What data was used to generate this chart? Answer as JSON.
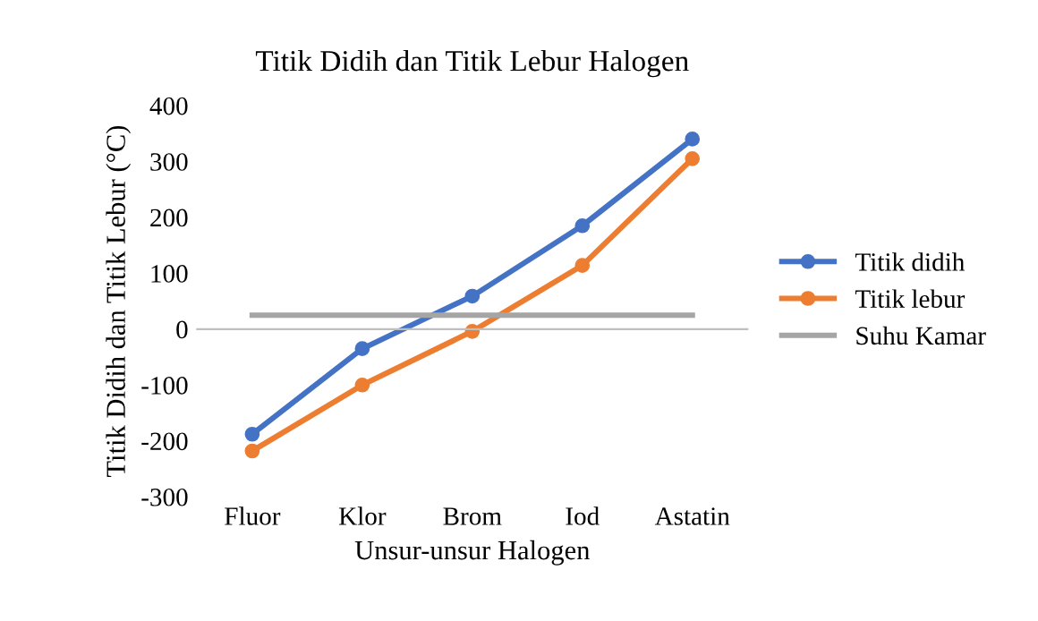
{
  "chart_data": {
    "type": "line",
    "title": "Titik Didih dan Titik Lebur Halogen",
    "xlabel": "Unsur-unsur Halogen",
    "ylabel": "Titik Didih dan Titik Lebur (°C)",
    "categories": [
      "Fluor",
      "Klor",
      "Brom",
      "Iod",
      "Astatin"
    ],
    "series": [
      {
        "name": "Titik didih",
        "color": "#4472c4",
        "marker": "circle",
        "values": [
          -188,
          -35,
          59,
          185,
          340
        ]
      },
      {
        "name": "Titik lebur",
        "color": "#ed7d31",
        "marker": "circle",
        "values": [
          -218,
          -100,
          -4,
          114,
          305
        ]
      },
      {
        "name": "Suhu Kamar",
        "color": "#a5a5a5",
        "marker": "none",
        "values": [
          25,
          25,
          25,
          25,
          25
        ]
      }
    ],
    "ylim": [
      -300,
      400
    ],
    "yticks": [
      -300,
      -200,
      -100,
      0,
      100,
      200,
      300,
      400
    ],
    "legend": "right"
  }
}
